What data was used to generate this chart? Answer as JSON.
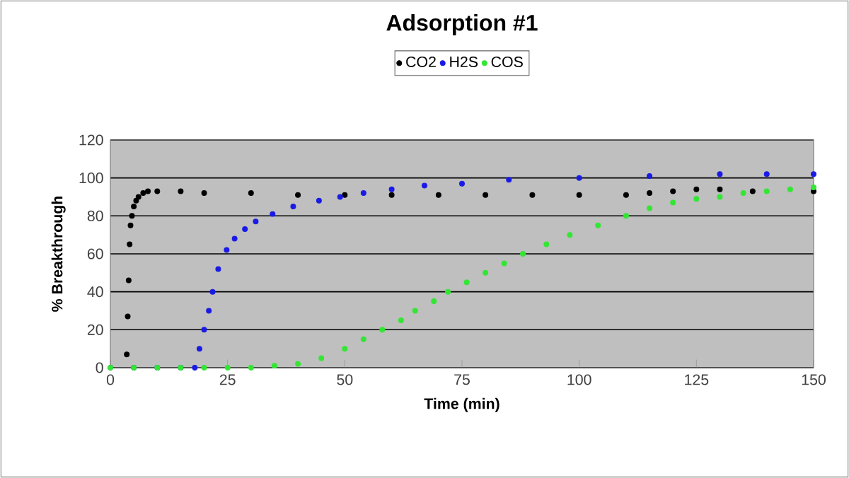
{
  "chart_data": {
    "type": "scatter",
    "title": "Adsorption #1",
    "xlabel": "Time (min)",
    "ylabel": "% Breakthrough",
    "xlim": [
      0,
      150
    ],
    "ylim": [
      0,
      120
    ],
    "xticks": [
      0,
      25,
      50,
      75,
      100,
      125,
      150
    ],
    "yticks": [
      0,
      20,
      40,
      60,
      80,
      100,
      120
    ],
    "grid": "y",
    "legend": "top",
    "series": [
      {
        "name": "CO2",
        "color": "#000000",
        "x": [
          3.5,
          3.7,
          3.9,
          4.1,
          4.3,
          4.6,
          5,
          5.5,
          6,
          7,
          8,
          10,
          15,
          20,
          30,
          40,
          50,
          60,
          70,
          80,
          90,
          100,
          110,
          115,
          120,
          125,
          130,
          137,
          150
        ],
        "values": [
          7,
          27,
          46,
          65,
          75,
          80,
          85,
          88,
          90,
          92,
          93,
          93,
          93,
          92,
          92,
          91,
          91,
          91,
          91,
          91,
          91,
          91,
          91,
          92,
          93,
          94,
          94,
          93,
          93
        ]
      },
      {
        "name": "H2S",
        "color": "#1a1ae6",
        "x": [
          0,
          5,
          10,
          15,
          18,
          19,
          20,
          21,
          21.8,
          23,
          24.8,
          26.5,
          28.7,
          31,
          34.6,
          39,
          44.5,
          49,
          54,
          60,
          67,
          75,
          85,
          100,
          115,
          130,
          140,
          150
        ],
        "values": [
          0,
          0,
          0,
          0,
          0,
          10,
          20,
          30,
          40,
          52,
          62,
          68,
          73,
          77,
          81,
          85,
          88,
          90,
          92,
          94,
          96,
          97,
          99,
          100,
          101,
          102,
          102,
          102
        ]
      },
      {
        "name": "COS",
        "color": "#33e633",
        "x": [
          0,
          5,
          10,
          15,
          20,
          25,
          30,
          35,
          40,
          45,
          50,
          54,
          58,
          62,
          65,
          69,
          72,
          76,
          80,
          84,
          88,
          93,
          98,
          104,
          110,
          115,
          120,
          125,
          130,
          135,
          140,
          145,
          150
        ],
        "values": [
          0,
          0,
          0,
          0,
          0,
          0,
          0,
          1,
          2,
          5,
          10,
          15,
          20,
          25,
          30,
          35,
          40,
          45,
          50,
          55,
          60,
          65,
          70,
          75,
          80,
          84,
          87,
          89,
          90,
          92,
          93,
          94,
          95
        ]
      }
    ]
  }
}
